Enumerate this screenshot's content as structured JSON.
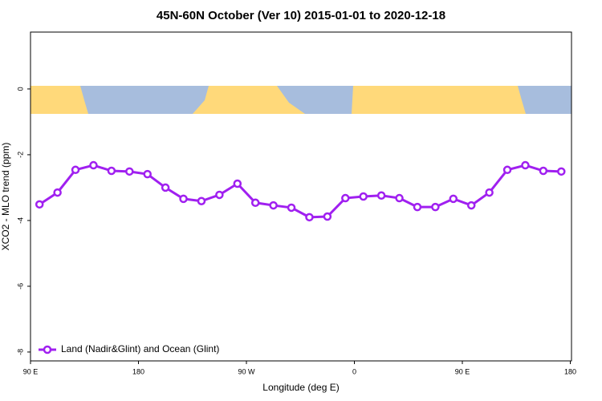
{
  "chart_data": {
    "type": "line",
    "title": "45N-60N October (Ver 10)   2015-01-01 to 2020-12-18",
    "x_label": "Longitude (deg E)",
    "y_label": "XCO2 - MLO trend (ppm)",
    "x": [
      97.5,
      112.5,
      127.5,
      142.5,
      157.5,
      172.5,
      187.5,
      202.5,
      217.5,
      232.5,
      247.5,
      262.5,
      277.5,
      292.5,
      307.5,
      322.5,
      337.5,
      352.5,
      367.5,
      382.5,
      397.5,
      412.5,
      427.5,
      442.5,
      457.5,
      472.5,
      487.5,
      502.5,
      517.5,
      532.5
    ],
    "series": [
      {
        "name": "Land (Nadir&Glint) and Ocean (Glint)",
        "color": "#a020f0",
        "values": [
          -3.51,
          -3.15,
          -2.46,
          -2.32,
          -2.49,
          -2.51,
          -2.59,
          -3.0,
          -3.34,
          -3.41,
          -3.22,
          -2.88,
          -3.46,
          -3.54,
          -3.61,
          -3.9,
          -3.88,
          -3.32,
          -3.27,
          -3.24,
          -3.32,
          -3.59,
          -3.59,
          -3.34,
          -3.54,
          -3.15,
          -2.46,
          -2.32,
          -2.49,
          -2.51
        ]
      }
    ],
    "xlim": [
      90,
      541
    ],
    "ylim": [
      -8.27,
      1.73
    ],
    "xticks": [
      {
        "value": 90,
        "label": "90 E"
      },
      180,
      {
        "value": 270,
        "label": "90 W"
      },
      {
        "value": 360,
        "label": "0"
      },
      {
        "value": 450,
        "label": "90 E"
      },
      {
        "value": 540,
        "label": "180"
      }
    ],
    "yticks": [
      0,
      -2,
      -4,
      -6,
      -8
    ],
    "legend": "bottom-left"
  }
}
